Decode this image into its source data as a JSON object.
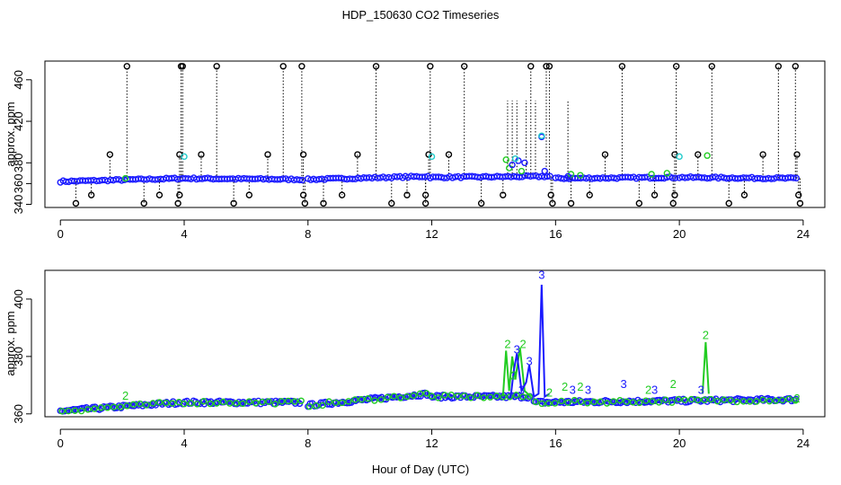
{
  "figure": {
    "title": "HDP_150630  CO2 Timeseries",
    "xlabel": "Hour of Day (UTC)"
  },
  "colors": {
    "axis": "#000000",
    "series_black": "#000000",
    "series_blue": "#1a1aff",
    "series_green": "#22cc22",
    "series_cyan": "#22cccc"
  },
  "chart_data": [
    {
      "type": "scatter",
      "title": "",
      "xlabel": "",
      "ylabel": "approx. ppm",
      "xlim": [
        -0.5,
        24.7
      ],
      "ylim": [
        337,
        478
      ],
      "xticks": [
        0,
        4,
        8,
        12,
        16,
        20,
        24
      ],
      "yticks": [
        340,
        360,
        380,
        420,
        460
      ],
      "baseline_segments": [
        {
          "x0": 0.0,
          "x1": 3.9,
          "y0": 362,
          "y1": 365
        },
        {
          "x0": 3.95,
          "x1": 7.9,
          "y0": 365,
          "y1": 364
        },
        {
          "x0": 8.0,
          "x1": 11.9,
          "y0": 364,
          "y1": 367
        },
        {
          "x0": 11.95,
          "x1": 15.9,
          "y0": 366,
          "y1": 367
        },
        {
          "x0": 16.0,
          "x1": 19.9,
          "y0": 365,
          "y1": 366
        },
        {
          "x0": 20.0,
          "x1": 23.8,
          "y0": 366,
          "y1": 365
        }
      ],
      "high_spikes_473": [
        2.15,
        3.9,
        3.95,
        5.05,
        7.2,
        7.8,
        10.2,
        11.95,
        13.05,
        15.2,
        15.7,
        15.8,
        18.15,
        19.9,
        21.05,
        23.2,
        23.75
      ],
      "mid_spikes_388": [
        1.6,
        3.85,
        4.55,
        6.7,
        7.85,
        9.6,
        11.9,
        12.55,
        17.6,
        19.85,
        20.6,
        22.7,
        23.8
      ],
      "low_spikes_341": [
        0.5,
        2.7,
        3.8,
        5.6,
        7.9,
        8.5,
        10.7,
        11.8,
        13.6,
        15.9,
        16.5,
        18.7,
        19.8,
        21.6,
        23.9
      ],
      "low_spikes_349": [
        1.0,
        3.2,
        3.85,
        6.1,
        7.85,
        9.1,
        11.2,
        11.8,
        14.3,
        15.85,
        17.1,
        19.2,
        19.85,
        22.1,
        23.85
      ],
      "cyan_points": [
        {
          "x": 4.0,
          "y": 386
        },
        {
          "x": 12.0,
          "y": 386
        },
        {
          "x": 14.7,
          "y": 384
        },
        {
          "x": 15.55,
          "y": 406
        },
        {
          "x": 20.0,
          "y": 386
        }
      ],
      "green_points": [
        {
          "x": 2.1,
          "y": 365
        },
        {
          "x": 14.4,
          "y": 383
        },
        {
          "x": 14.5,
          "y": 375
        },
        {
          "x": 14.9,
          "y": 372
        },
        {
          "x": 16.5,
          "y": 369
        },
        {
          "x": 16.8,
          "y": 368
        },
        {
          "x": 19.1,
          "y": 369
        },
        {
          "x": 19.6,
          "y": 370
        },
        {
          "x": 20.9,
          "y": 387
        }
      ],
      "blue_points": [
        {
          "x": 14.6,
          "y": 378
        },
        {
          "x": 14.8,
          "y": 382
        },
        {
          "x": 15.0,
          "y": 380
        },
        {
          "x": 15.55,
          "y": 405
        },
        {
          "x": 15.65,
          "y": 372
        },
        {
          "x": 16.4,
          "y": 367
        }
      ]
    },
    {
      "type": "line",
      "title": "",
      "xlabel": "",
      "ylabel": "approx. ppm",
      "xlim": [
        -0.5,
        24.7
      ],
      "ylim": [
        359,
        410
      ],
      "xticks": [
        0,
        4,
        8,
        12,
        16,
        20,
        24
      ],
      "yticks": [
        360,
        380,
        400
      ],
      "baseline_segments": [
        {
          "x0": 0.0,
          "x1": 3.9,
          "y0": 361,
          "y1": 364
        },
        {
          "x0": 3.95,
          "x1": 7.8,
          "y0": 364,
          "y1": 364
        },
        {
          "x0": 8.0,
          "x1": 11.9,
          "y0": 363,
          "y1": 367
        },
        {
          "x0": 11.95,
          "x1": 15.2,
          "y0": 366,
          "y1": 366
        },
        {
          "x0": 15.3,
          "x1": 23.8,
          "y0": 364,
          "y1": 365
        }
      ],
      "green_trace": [
        {
          "x": 14.3,
          "y": 366
        },
        {
          "x": 14.4,
          "y": 382
        },
        {
          "x": 14.5,
          "y": 368
        },
        {
          "x": 14.6,
          "y": 380
        },
        {
          "x": 14.7,
          "y": 372
        },
        {
          "x": 14.85,
          "y": 383
        },
        {
          "x": 15.0,
          "y": 368
        },
        {
          "x": 15.2,
          "y": 366
        }
      ],
      "blue_trace": [
        {
          "x": 14.55,
          "y": 366
        },
        {
          "x": 14.65,
          "y": 375
        },
        {
          "x": 14.75,
          "y": 381
        },
        {
          "x": 14.9,
          "y": 368
        },
        {
          "x": 15.05,
          "y": 371
        },
        {
          "x": 15.15,
          "y": 377
        },
        {
          "x": 15.3,
          "y": 366
        },
        {
          "x": 15.45,
          "y": 367
        },
        {
          "x": 15.55,
          "y": 405
        },
        {
          "x": 15.65,
          "y": 366
        },
        {
          "x": 15.8,
          "y": 367
        }
      ],
      "green_spike_2": [
        {
          "x": 20.75,
          "y": 367
        },
        {
          "x": 20.85,
          "y": 385
        },
        {
          "x": 20.95,
          "y": 367
        }
      ],
      "labels": [
        {
          "x": 2.1,
          "y": 365,
          "text": "2",
          "series": "green"
        },
        {
          "x": 14.45,
          "y": 383,
          "text": "2",
          "series": "green"
        },
        {
          "x": 14.65,
          "y": 372,
          "text": "2",
          "series": "green"
        },
        {
          "x": 14.75,
          "y": 381,
          "text": "3",
          "series": "blue"
        },
        {
          "x": 14.95,
          "y": 383,
          "text": "2",
          "series": "green"
        },
        {
          "x": 15.15,
          "y": 377,
          "text": "3",
          "series": "blue"
        },
        {
          "x": 14.9,
          "y": 367,
          "text": "3",
          "series": "blue"
        },
        {
          "x": 15.55,
          "y": 407,
          "text": "3",
          "series": "blue"
        },
        {
          "x": 15.8,
          "y": 366,
          "text": "2",
          "series": "green"
        },
        {
          "x": 16.3,
          "y": 368,
          "text": "2",
          "series": "green"
        },
        {
          "x": 16.55,
          "y": 367,
          "text": "3",
          "series": "blue"
        },
        {
          "x": 16.8,
          "y": 368,
          "text": "2",
          "series": "green"
        },
        {
          "x": 17.05,
          "y": 367,
          "text": "3",
          "series": "blue"
        },
        {
          "x": 18.2,
          "y": 369,
          "text": "3",
          "series": "blue"
        },
        {
          "x": 19.0,
          "y": 367,
          "text": "2",
          "series": "green"
        },
        {
          "x": 19.2,
          "y": 367,
          "text": "3",
          "series": "blue"
        },
        {
          "x": 19.8,
          "y": 369,
          "text": "2",
          "series": "green"
        },
        {
          "x": 20.7,
          "y": 367,
          "text": "3",
          "series": "blue"
        },
        {
          "x": 20.85,
          "y": 386,
          "text": "2",
          "series": "green"
        },
        {
          "x": 23.8,
          "y": 364,
          "text": "2",
          "series": "green"
        }
      ]
    }
  ]
}
